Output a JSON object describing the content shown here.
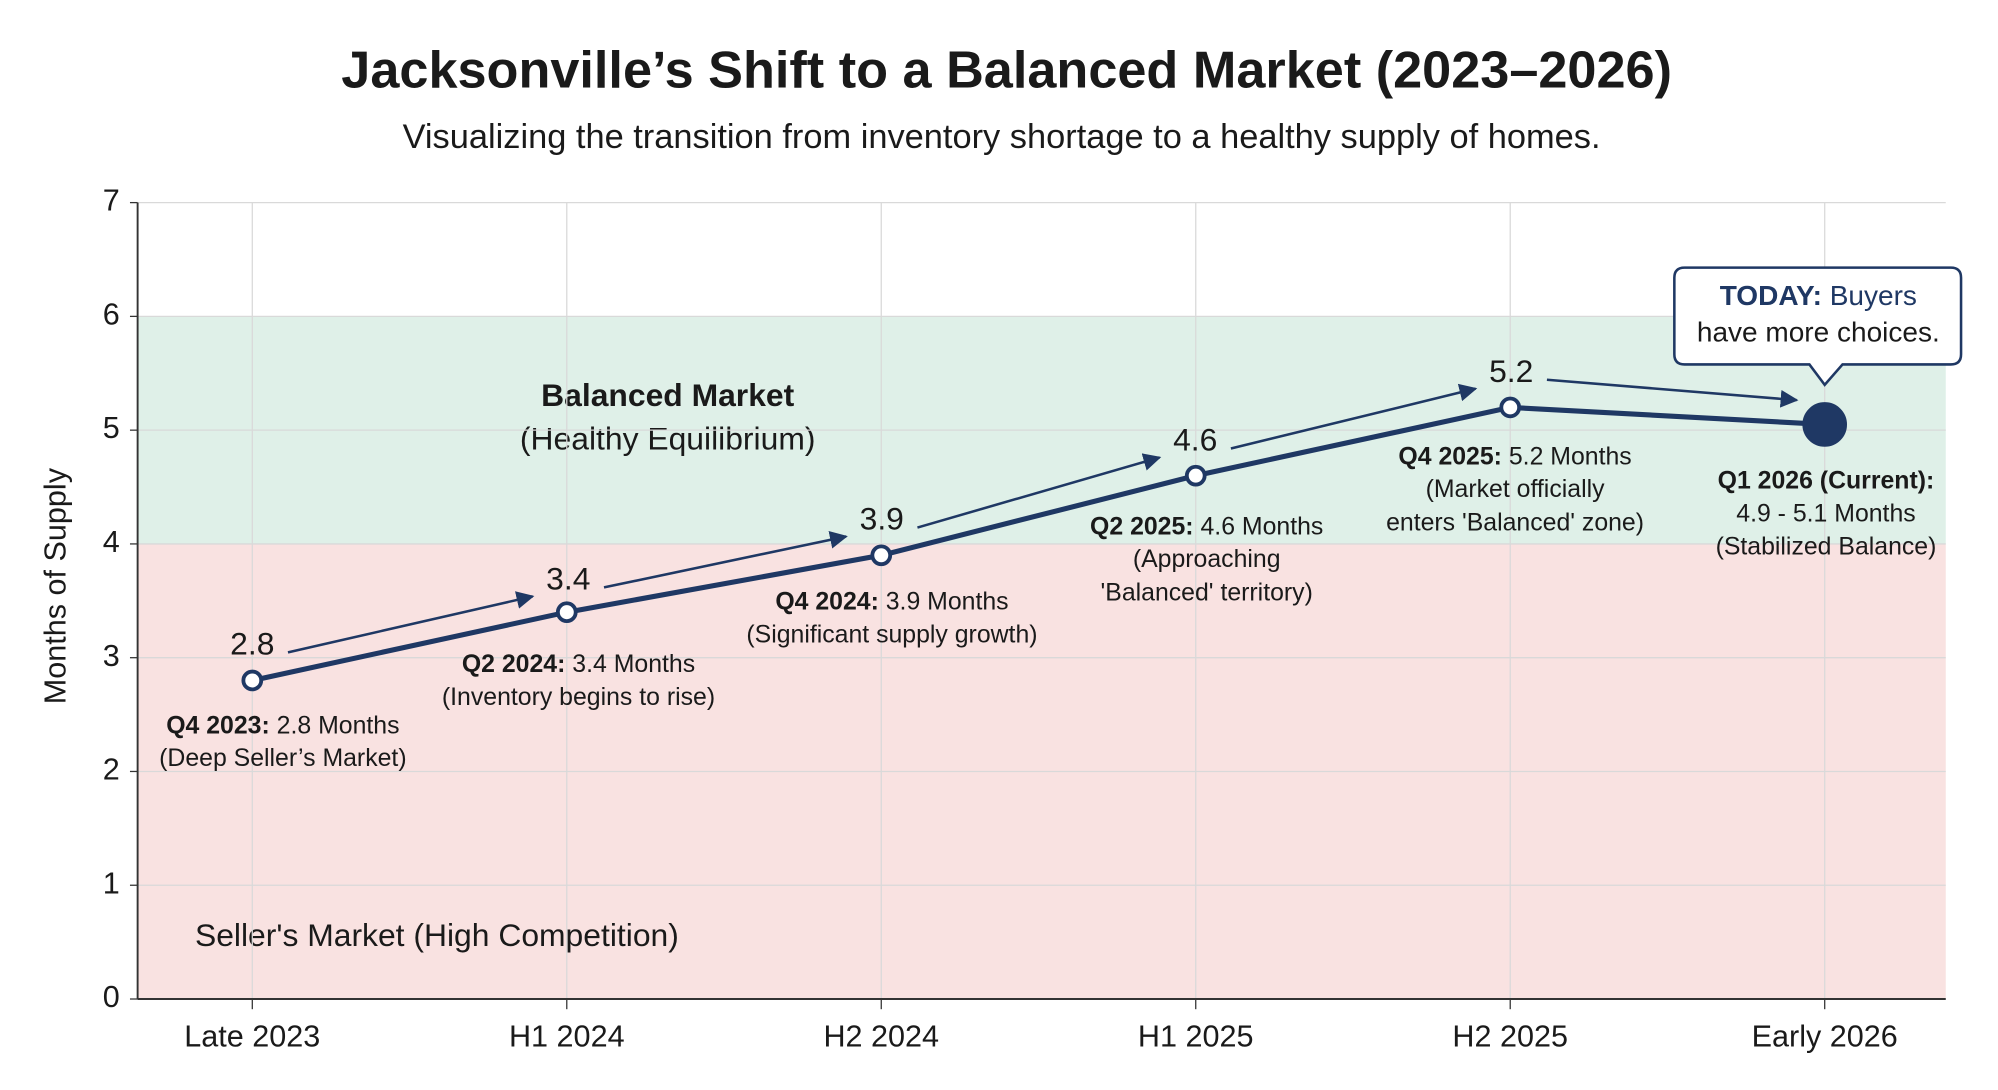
{
  "chart_data": {
    "type": "line",
    "title": "Jacksonville’s Shift to a Balanced Market (2023–2026)",
    "subtitle": "Visualizing the transition from inventory shortage to a healthy supply of homes.",
    "y_label": "Months of Supply",
    "categories": [
      "Late 2023",
      "H1 2024",
      "H2 2024",
      "H1 2025",
      "H2 2025",
      "Early 2026"
    ],
    "series": [
      {
        "name": "Months of Supply",
        "color": "#1f3864",
        "values": [
          2.8,
          3.4,
          3.9,
          4.6,
          5.2,
          5.05
        ]
      }
    ],
    "ylim": [
      0,
      7
    ],
    "yticks": [
      0,
      1,
      2,
      3,
      4,
      5,
      6,
      7
    ],
    "grid": true,
    "bands": [
      {
        "from": 4,
        "to": 6,
        "color": "#dff0e8",
        "label": "Balanced Market",
        "sublabel": "(Healthy Equilibrium)"
      },
      {
        "from": 0,
        "to": 4,
        "color": "#f9e2e1",
        "label": "Seller's Market (High Competition)"
      }
    ],
    "annotations": [
      {
        "title": "Q4 2023:",
        "text": "2.8 Months",
        "lines": [
          "(Deep Seller’s Market)"
        ]
      },
      {
        "title": "Q2 2024:",
        "text": "3.4 Months",
        "lines": [
          "(Inventory begins to rise)"
        ]
      },
      {
        "title": "Q4 2024:",
        "text": "3.9 Months",
        "lines": [
          "(Significant supply growth)"
        ]
      },
      {
        "title": "Q2 2025:",
        "text": "4.6 Months",
        "lines": [
          "(Approaching",
          "'Balanced' territory)"
        ]
      },
      {
        "title": "Q4 2025:",
        "text": "5.2 Months",
        "lines": [
          "(Market officially",
          "enters 'Balanced' zone)"
        ]
      },
      {
        "title": "Q1 2026 (Current):",
        "lines": [
          "4.9 - 5.1 Months",
          "(Stabilized Balance)"
        ]
      }
    ],
    "callout": {
      "title": "TODAY:",
      "text": "Buyers",
      "lines": [
        "have more choices."
      ]
    }
  }
}
